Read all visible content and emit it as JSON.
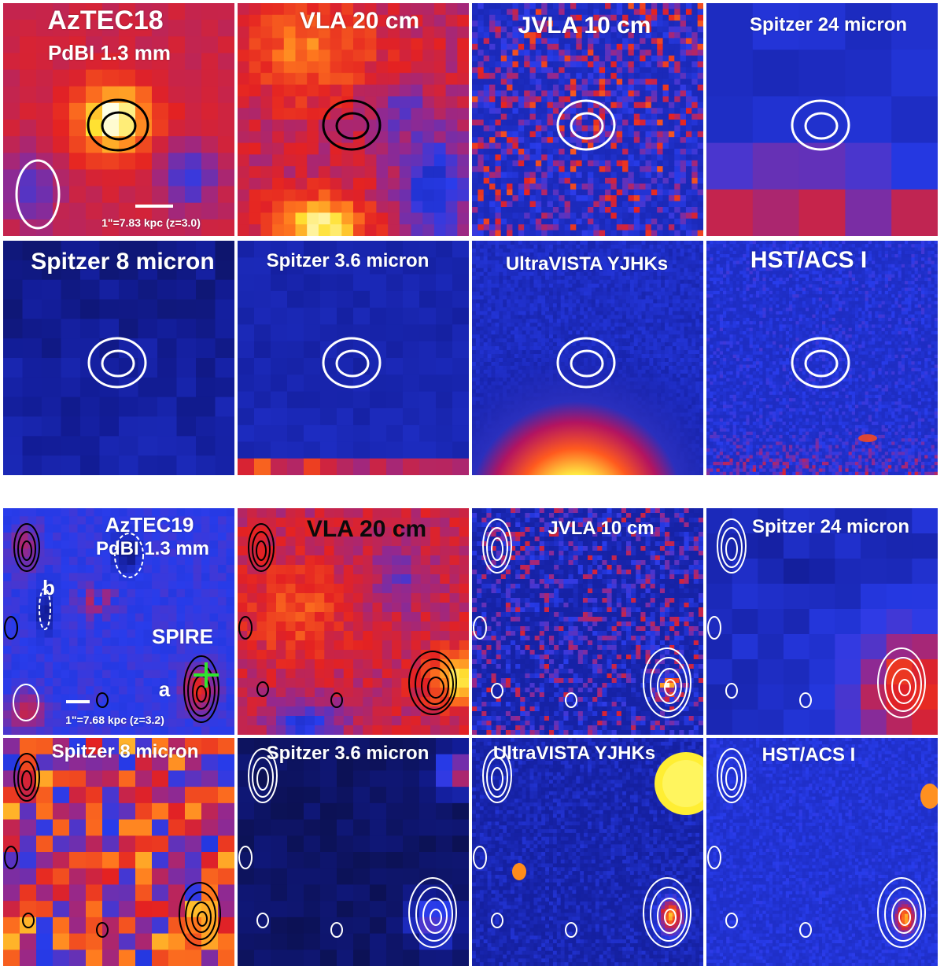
{
  "sources": [
    {
      "name": "AzTEC18",
      "band": "PdBI 1.3 mm",
      "scale_label": "1\"=7.83 kpc (z=3.0)",
      "panels": [
        {
          "title": "",
          "style": "heat-peak"
        },
        {
          "title": "VLA 20 cm",
          "style": "heat-blob"
        },
        {
          "title": "JVLA 10 cm",
          "style": "noise-blue"
        },
        {
          "title": "Spitzer 24 micron",
          "style": "blue-coarse"
        },
        {
          "title": "Spitzer 8 micron",
          "style": "dark-blue"
        },
        {
          "title": "Spitzer 3.6 micron",
          "style": "blue-bottom"
        },
        {
          "title": "UltraVISTA YJHKs",
          "style": "blue-bottom-glow"
        },
        {
          "title": "HST/ACS I",
          "style": "blue-speckle"
        }
      ]
    },
    {
      "name": "AzTEC19",
      "band": "PdBI 1.3 mm",
      "scale_label": "1\"=7.68 kpc (z=3.2)",
      "annotations": {
        "label_a": "a",
        "label_b": "b",
        "spire": "SPIRE"
      },
      "panels": [
        {
          "title": "",
          "style": "mixed"
        },
        {
          "title": "VLA 20 cm",
          "style": "heat-blob-right"
        },
        {
          "title": "JVLA 10 cm",
          "style": "noise-blue"
        },
        {
          "title": "Spitzer 24 micron",
          "style": "blue-coarse-right"
        },
        {
          "title": "Spitzer 8 micron",
          "style": "heat-noise"
        },
        {
          "title": "Spitzer 3.6 micron",
          "style": "dark-blue-right"
        },
        {
          "title": "UltraVISTA YJHKs",
          "style": "blue-bright-corner"
        },
        {
          "title": "HST/ACS I",
          "style": "blue-speckle-corner"
        }
      ]
    }
  ],
  "colors": {
    "heat_red": "#e52222",
    "heat_yellow": "#ffe033",
    "deep_blue": "#0a1070",
    "mid_blue": "#2231d6",
    "contour_black": "#000000",
    "contour_white": "#ffffff",
    "spire_cross": "#2ee62e"
  }
}
